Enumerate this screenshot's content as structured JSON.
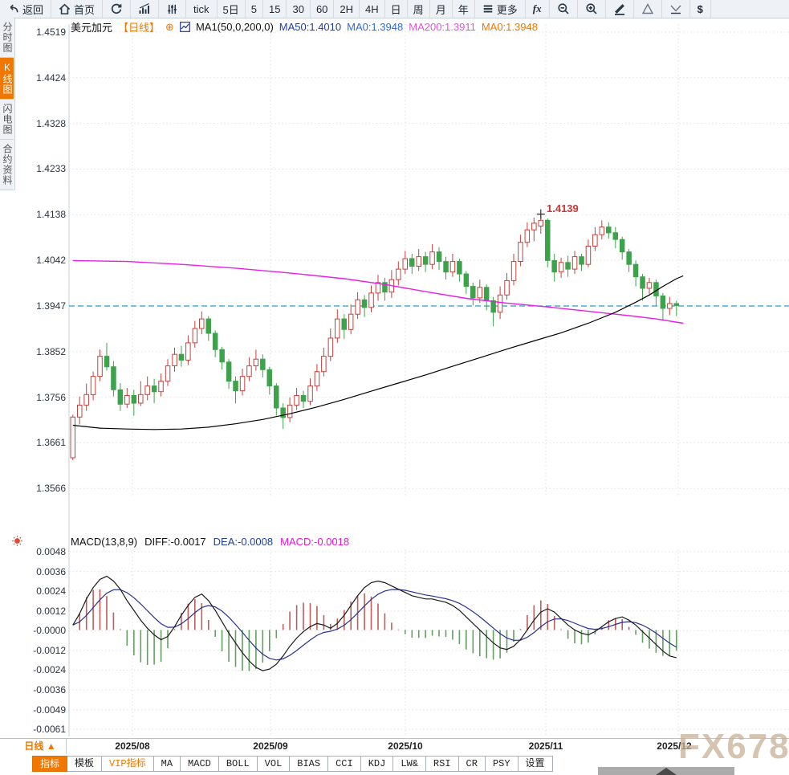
{
  "toolbar": {
    "items": [
      "返回",
      "首页",
      null,
      null,
      null,
      "tick",
      "5日",
      "5",
      "15",
      "30",
      "60",
      "2H",
      "4H",
      "日",
      "周",
      "月",
      "年",
      "更多",
      "fx",
      null,
      null,
      null,
      null,
      null,
      "$"
    ]
  },
  "sidebar": {
    "items": [
      {
        "label": "分时图",
        "active": false
      },
      {
        "label": "K线图",
        "active": true
      },
      {
        "label": "闪电图",
        "active": false
      },
      {
        "label": "合约资料",
        "active": false
      }
    ]
  },
  "price_header": {
    "symbol": "美元加元",
    "period": "【日线】",
    "add_icon": "⊕",
    "ma_def": "MA1(50,0,200,0)",
    "ma50": "MA50:1.4010",
    "ma0_blue": "MA0:1.3948",
    "ma200": "MA200:1.3911",
    "ma0_orange": "MA0:1.3948"
  },
  "macd_header": {
    "title": "MACD(13,8,9)",
    "diff": "DIFF:-0.0017",
    "dea": "DEA:-0.0008",
    "macd": "MACD:-0.0018"
  },
  "annotation": {
    "high_label": "1.4139"
  },
  "bottom": {
    "period_selector": "日线 ▲",
    "tabs": [
      "指标",
      "模板",
      "VIP指标",
      "MA",
      "MACD",
      "BOLL",
      "VOL",
      "BIAS",
      "CCI",
      "KDJ",
      "LW&",
      "RSI",
      "CR",
      "PSY",
      "设置"
    ]
  },
  "watermark": "FX678",
  "chart_data": {
    "type": "candlestick+macd",
    "symbol": "USD/CAD 美元加元",
    "timeframe": "daily 日线",
    "x_axis": {
      "labels": [
        "2025/08",
        "2025/09",
        "2025/10",
        "2025/11",
        "2025/12"
      ]
    },
    "price_axis": {
      "ticks": [
        "1.4519",
        "1.4424",
        "1.4328",
        "1.4233",
        "1.4138",
        "1.4042",
        "1.3947",
        "1.3852",
        "1.3756",
        "1.3661",
        "1.3566"
      ],
      "current_price_line": 1.3947,
      "high_marker": 1.4139
    },
    "candles": [
      [
        1.363,
        1.372,
        1.3625,
        1.3715
      ],
      [
        1.3715,
        1.3758,
        1.37,
        1.374
      ],
      [
        1.374,
        1.3785,
        1.3728,
        1.3762
      ],
      [
        1.3762,
        1.381,
        1.375,
        1.38
      ],
      [
        1.38,
        1.3856,
        1.379,
        1.3842
      ],
      [
        1.3842,
        1.387,
        1.3812,
        1.382
      ],
      [
        1.382,
        1.3832,
        1.3758,
        1.3772
      ],
      [
        1.3772,
        1.3786,
        1.3728,
        1.3742
      ],
      [
        1.3742,
        1.3776,
        1.3734,
        1.376
      ],
      [
        1.376,
        1.3772,
        1.3718,
        1.3744
      ],
      [
        1.3744,
        1.379,
        1.3738,
        1.3762
      ],
      [
        1.3762,
        1.38,
        1.375,
        1.378
      ],
      [
        1.378,
        1.3795,
        1.3744,
        1.3768
      ],
      [
        1.3768,
        1.3806,
        1.3758,
        1.379
      ],
      [
        1.379,
        1.3836,
        1.378,
        1.3822
      ],
      [
        1.3822,
        1.386,
        1.381,
        1.3846
      ],
      [
        1.3846,
        1.3864,
        1.382,
        1.3834
      ],
      [
        1.3834,
        1.3886,
        1.3824,
        1.387
      ],
      [
        1.387,
        1.3916,
        1.386,
        1.39
      ],
      [
        1.39,
        1.3936,
        1.3888,
        1.392
      ],
      [
        1.392,
        1.3926,
        1.3874,
        1.389
      ],
      [
        1.389,
        1.3896,
        1.384,
        1.3856
      ],
      [
        1.3856,
        1.3862,
        1.3814,
        1.383
      ],
      [
        1.383,
        1.3836,
        1.3774,
        1.379
      ],
      [
        1.379,
        1.38,
        1.3744,
        1.377
      ],
      [
        1.377,
        1.3816,
        1.376,
        1.38
      ],
      [
        1.38,
        1.384,
        1.379,
        1.3822
      ],
      [
        1.3822,
        1.3856,
        1.3812,
        1.3836
      ],
      [
        1.3836,
        1.3846,
        1.3798,
        1.3814
      ],
      [
        1.3814,
        1.382,
        1.3762,
        1.378
      ],
      [
        1.378,
        1.3786,
        1.3718,
        1.3734
      ],
      [
        1.3734,
        1.3744,
        1.369,
        1.3714
      ],
      [
        1.3714,
        1.3756,
        1.3704,
        1.374
      ],
      [
        1.374,
        1.3776,
        1.373,
        1.376
      ],
      [
        1.376,
        1.377,
        1.3734,
        1.3748
      ],
      [
        1.3748,
        1.3796,
        1.374,
        1.378
      ],
      [
        1.378,
        1.3826,
        1.377,
        1.381
      ],
      [
        1.381,
        1.386,
        1.38,
        1.3842
      ],
      [
        1.3842,
        1.39,
        1.3832,
        1.388
      ],
      [
        1.388,
        1.394,
        1.387,
        1.392
      ],
      [
        1.392,
        1.393,
        1.3878,
        1.3898
      ],
      [
        1.3898,
        1.395,
        1.3888,
        1.393
      ],
      [
        1.393,
        1.3976,
        1.392,
        1.396
      ],
      [
        1.396,
        1.397,
        1.3924,
        1.3944
      ],
      [
        1.3944,
        1.399,
        1.3934,
        1.3974
      ],
      [
        1.3974,
        1.4012,
        1.3958,
        1.3996
      ],
      [
        1.3996,
        1.4006,
        1.3958,
        1.3976
      ],
      [
        1.3976,
        1.4022,
        1.3964,
        1.4002
      ],
      [
        1.4002,
        1.404,
        1.399,
        1.4024
      ],
      [
        1.4024,
        1.4062,
        1.4014,
        1.4046
      ],
      [
        1.4046,
        1.4056,
        1.4014,
        1.403
      ],
      [
        1.403,
        1.4066,
        1.402,
        1.405
      ],
      [
        1.405,
        1.406,
        1.4018,
        1.4034
      ],
      [
        1.4034,
        1.4076,
        1.4024,
        1.406
      ],
      [
        1.406,
        1.407,
        1.4022,
        1.404
      ],
      [
        1.404,
        1.405,
        1.4002,
        1.4018
      ],
      [
        1.4018,
        1.4056,
        1.4008,
        1.404
      ],
      [
        1.404,
        1.4046,
        1.3998,
        1.4014
      ],
      [
        1.4014,
        1.402,
        1.3972,
        1.3988
      ],
      [
        1.3988,
        1.3996,
        1.3948,
        1.3964
      ],
      [
        1.3964,
        1.4002,
        1.3954,
        1.3986
      ],
      [
        1.3986,
        1.3992,
        1.3938,
        1.3958
      ],
      [
        1.3958,
        1.3966,
        1.3905,
        1.3934
      ],
      [
        1.3934,
        1.3988,
        1.392,
        1.397
      ],
      [
        1.397,
        1.4016,
        1.396,
        1.4
      ],
      [
        1.4,
        1.4056,
        1.399,
        1.404
      ],
      [
        1.404,
        1.4096,
        1.403,
        1.408
      ],
      [
        1.408,
        1.4122,
        1.407,
        1.4106
      ],
      [
        1.4106,
        1.4132,
        1.4082,
        1.412
      ],
      [
        1.4114,
        1.4139,
        1.4098,
        1.4126
      ],
      [
        1.4126,
        1.413,
        1.4028,
        1.4042
      ],
      [
        1.4042,
        1.4056,
        1.3998,
        1.4018
      ],
      [
        1.4018,
        1.4048,
        1.4006,
        1.4038
      ],
      [
        1.4038,
        1.4052,
        1.4008,
        1.4024
      ],
      [
        1.4024,
        1.4062,
        1.4014,
        1.405
      ],
      [
        1.405,
        1.4056,
        1.402,
        1.4034
      ],
      [
        1.4034,
        1.4086,
        1.4028,
        1.4072
      ],
      [
        1.4072,
        1.4112,
        1.4062,
        1.4096
      ],
      [
        1.4096,
        1.4126,
        1.4086,
        1.4112
      ],
      [
        1.4112,
        1.4122,
        1.4088,
        1.41
      ],
      [
        1.41,
        1.4112,
        1.4068,
        1.4086
      ],
      [
        1.4086,
        1.4092,
        1.4044,
        1.406
      ],
      [
        1.406,
        1.4066,
        1.4018,
        1.4034
      ],
      [
        1.4034,
        1.4042,
        1.3988,
        1.4008
      ],
      [
        1.4008,
        1.4014,
        1.3958,
        1.3984
      ],
      [
        1.3984,
        1.4006,
        1.3972,
        1.3996
      ],
      [
        1.3996,
        1.4002,
        1.3946,
        1.3968
      ],
      [
        1.3968,
        1.3974,
        1.3918,
        1.3942
      ],
      [
        1.3942,
        1.3966,
        1.3928,
        1.3952
      ],
      [
        1.3952,
        1.3958,
        1.3926,
        1.3948
      ]
    ],
    "ma50_points": [
      [
        0,
        1.3698
      ],
      [
        4,
        1.3692
      ],
      [
        8,
        1.369
      ],
      [
        12,
        1.3689
      ],
      [
        16,
        1.369
      ],
      [
        20,
        1.3694
      ],
      [
        24,
        1.3701
      ],
      [
        28,
        1.371
      ],
      [
        32,
        1.3722
      ],
      [
        36,
        1.3736
      ],
      [
        40,
        1.3752
      ],
      [
        44,
        1.3769
      ],
      [
        48,
        1.3786
      ],
      [
        52,
        1.3803
      ],
      [
        56,
        1.3821
      ],
      [
        60,
        1.3839
      ],
      [
        64,
        1.3857
      ],
      [
        68,
        1.3874
      ],
      [
        72,
        1.3891
      ],
      [
        76,
        1.3911
      ],
      [
        80,
        1.3934
      ],
      [
        83,
        1.3955
      ],
      [
        85,
        1.397
      ],
      [
        87,
        1.3988
      ],
      [
        89,
        1.4004
      ],
      [
        90,
        1.401
      ]
    ],
    "ma200_points": [
      [
        0,
        1.4042
      ],
      [
        8,
        1.404
      ],
      [
        16,
        1.4034
      ],
      [
        24,
        1.4026
      ],
      [
        32,
        1.4016
      ],
      [
        40,
        1.4004
      ],
      [
        46,
        1.3992
      ],
      [
        52,
        1.3977
      ],
      [
        58,
        1.3963
      ],
      [
        64,
        1.3953
      ],
      [
        70,
        1.3945
      ],
      [
        76,
        1.3936
      ],
      [
        82,
        1.3927
      ],
      [
        86,
        1.392
      ],
      [
        90,
        1.3911
      ]
    ],
    "macd": {
      "axis_ticks": [
        "0.0048",
        "0.0036",
        "0.0024",
        "0.0012",
        "-0.0000",
        "-0.0012",
        "-0.0024",
        "-0.0036",
        "-0.0049",
        "-0.0061"
      ],
      "diff_x10000": [
        3,
        10,
        19,
        26,
        31,
        33,
        30,
        25,
        18,
        12,
        6,
        1,
        -3,
        -6,
        -4,
        2,
        9,
        15,
        20,
        22,
        18,
        12,
        5,
        -2,
        -8,
        -14,
        -19,
        -23,
        -25,
        -24,
        -21,
        -16,
        -10,
        -5,
        -1,
        2,
        4,
        3,
        1,
        4,
        9,
        15,
        21,
        26,
        29,
        30,
        29,
        27,
        25,
        23,
        21,
        20,
        19,
        19,
        18,
        17,
        15,
        12,
        8,
        4,
        0,
        -4,
        -8,
        -11,
        -12,
        -10,
        -6,
        0,
        6,
        11,
        13,
        11,
        7,
        3,
        0,
        -2,
        -3,
        -1,
        2,
        5,
        7,
        8,
        6,
        3,
        -1,
        -5,
        -9,
        -13,
        -16,
        -17
      ],
      "readout": {
        "diff": -0.0017,
        "dea": -0.0008,
        "macd": -0.0018
      }
    },
    "colors": {
      "up": "#c9403b",
      "down": "#3da24b",
      "ma50": "#000000",
      "ma200": "#e81ee8",
      "diff_line": "#1a1a1a",
      "dea_line": "#27308f",
      "hist_pos": "#c05c58",
      "hist_neg": "#61a061",
      "current_line": "#2a9bd4",
      "accent_orange": "#f07800",
      "annotation_red": "#d23333"
    }
  }
}
